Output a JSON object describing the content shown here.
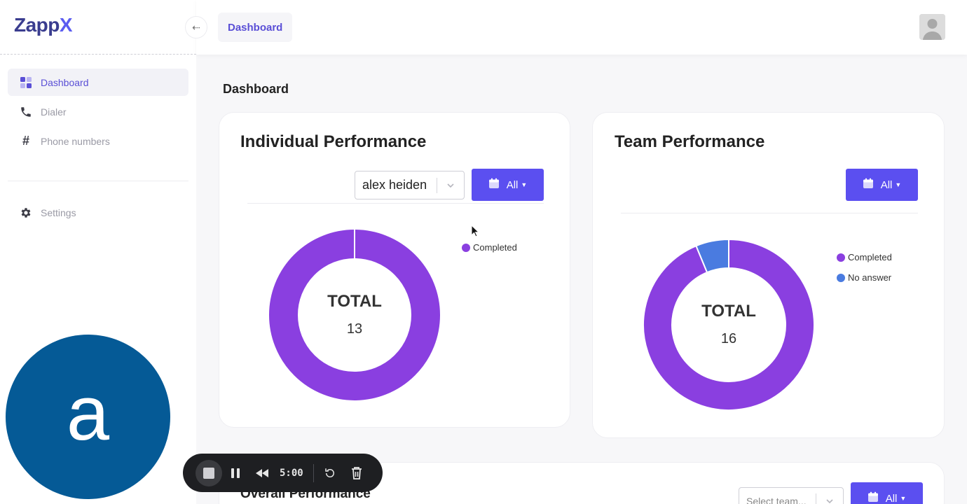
{
  "app": {
    "logo_part1": "Zapp",
    "logo_part2": "X"
  },
  "topbar": {
    "breadcrumb": "Dashboard"
  },
  "sidebar": {
    "items": [
      {
        "label": "Dashboard"
      },
      {
        "label": "Dialer"
      },
      {
        "label": "Phone numbers"
      },
      {
        "label": "Settings"
      }
    ]
  },
  "page": {
    "title": "Dashboard"
  },
  "individual": {
    "title": "Individual Performance",
    "select_value": "alex heiden",
    "filter_label": "All",
    "legend": [
      {
        "label": "Completed",
        "color": "#8a3fe0"
      }
    ],
    "center_title": "TOTAL",
    "center_value": "13"
  },
  "team": {
    "title": "Team Performance",
    "filter_label": "All",
    "legend": [
      {
        "label": "Completed",
        "color": "#8a3fe0"
      },
      {
        "label": "No answer",
        "color": "#4a7be0"
      }
    ],
    "center_title": "TOTAL",
    "center_value": "16"
  },
  "overall": {
    "title": "Overall Performance",
    "select_placeholder": "Select team...",
    "filter_label": "All"
  },
  "recorder": {
    "webcam_letter": "a",
    "time": "5:00"
  },
  "chart_data": [
    {
      "type": "pie",
      "title": "Individual Performance",
      "categories": [
        "Completed"
      ],
      "values": [
        13
      ],
      "center_text": "TOTAL 13"
    },
    {
      "type": "pie",
      "title": "Team Performance",
      "categories": [
        "Completed",
        "No answer"
      ],
      "values": [
        15,
        1
      ],
      "center_text": "TOTAL 16"
    }
  ]
}
